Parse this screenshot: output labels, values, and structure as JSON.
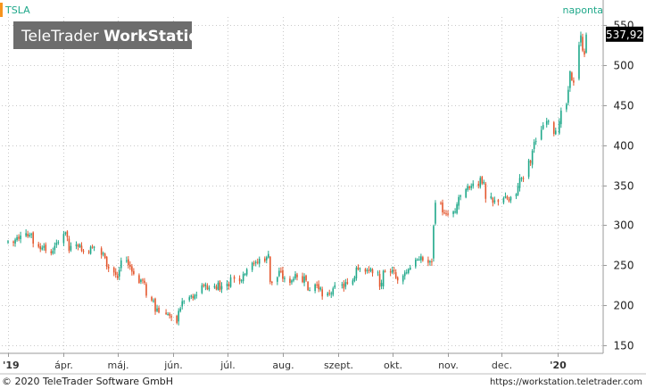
{
  "header": {
    "symbol": "TSLA",
    "interval": "naponta",
    "watermark_part1": "TeleTrader ",
    "watermark_part2": "WorkStation"
  },
  "footer": {
    "copyright": "© 2020 TeleTrader Software GmbH",
    "url": "https://workstation.teletrader.com"
  },
  "colors": {
    "up": "#1fa88a",
    "down": "#e4572e",
    "grid": "#c9c9c9",
    "accent": "#f7941d",
    "watermark_bg": "#6d6d6d",
    "last_price_bg": "#000000"
  },
  "chart_data": {
    "type": "candlestick",
    "title": "TSLA",
    "interval": "naponta",
    "last_price_label": "537,92",
    "last_price": 537.92,
    "ylim": [
      140,
      560
    ],
    "yticks": [
      150,
      200,
      250,
      300,
      350,
      400,
      450,
      500,
      550
    ],
    "ytick_labels": [
      "150",
      "200",
      "250",
      "300",
      "350",
      "400",
      "450",
      "500",
      "550"
    ],
    "xtick_labels": [
      "'19",
      "ápr.",
      "máj.",
      "jún.",
      "júl.",
      "aug.",
      "szept.",
      "okt.",
      "nov.",
      "dec.",
      "'20"
    ],
    "xtick_dates": [
      "2019-03-01",
      "2019-04-01",
      "2019-05-01",
      "2019-06-01",
      "2019-07-01",
      "2019-08-01",
      "2019-09-01",
      "2019-10-01",
      "2019-11-01",
      "2019-12-01",
      "2020-01-01"
    ],
    "x_range": [
      "2019-03-01",
      "2020-01-17"
    ],
    "grid": true,
    "note": "daily closing prices approximated from the chart",
    "closes": [
      [
        "2019-03-01",
        280
      ],
      [
        "2019-03-04",
        278
      ],
      [
        "2019-03-05",
        282
      ],
      [
        "2019-03-06",
        285
      ],
      [
        "2019-03-07",
        283
      ],
      [
        "2019-03-08",
        287
      ],
      [
        "2019-03-11",
        290
      ],
      [
        "2019-03-12",
        286
      ],
      [
        "2019-03-13",
        288
      ],
      [
        "2019-03-14",
        289
      ],
      [
        "2019-03-15",
        277
      ],
      [
        "2019-03-18",
        273
      ],
      [
        "2019-03-19",
        270
      ],
      [
        "2019-03-20",
        272
      ],
      [
        "2019-03-21",
        274
      ],
      [
        "2019-03-22",
        268
      ],
      [
        "2019-03-25",
        265
      ],
      [
        "2019-03-26",
        268
      ],
      [
        "2019-03-27",
        274
      ],
      [
        "2019-03-28",
        278
      ],
      [
        "2019-03-29",
        279
      ],
      [
        "2019-04-01",
        289
      ],
      [
        "2019-04-02",
        291
      ],
      [
        "2019-04-03",
        285
      ],
      [
        "2019-04-04",
        268
      ],
      [
        "2019-04-05",
        274
      ],
      [
        "2019-04-08",
        276
      ],
      [
        "2019-04-09",
        273
      ],
      [
        "2019-04-10",
        276
      ],
      [
        "2019-04-11",
        268
      ],
      [
        "2019-04-12",
        267
      ],
      [
        "2019-04-15",
        266
      ],
      [
        "2019-04-16",
        273
      ],
      [
        "2019-04-17",
        272
      ],
      [
        "2019-04-18",
        273
      ],
      [
        "2019-04-22",
        263
      ],
      [
        "2019-04-23",
        265
      ],
      [
        "2019-04-24",
        259
      ],
      [
        "2019-04-25",
        248
      ],
      [
        "2019-04-26",
        246
      ],
      [
        "2019-04-29",
        241
      ],
      [
        "2019-04-30",
        238
      ],
      [
        "2019-05-01",
        234
      ],
      [
        "2019-05-02",
        244
      ],
      [
        "2019-05-03",
        256
      ],
      [
        "2019-05-06",
        256
      ],
      [
        "2019-05-07",
        250
      ],
      [
        "2019-05-08",
        248
      ],
      [
        "2019-05-09",
        242
      ],
      [
        "2019-05-10",
        239
      ],
      [
        "2019-05-13",
        228
      ],
      [
        "2019-05-14",
        232
      ],
      [
        "2019-05-15",
        231
      ],
      [
        "2019-05-16",
        228
      ],
      [
        "2019-05-17",
        212
      ],
      [
        "2019-05-20",
        206
      ],
      [
        "2019-05-21",
        206
      ],
      [
        "2019-05-22",
        192
      ],
      [
        "2019-05-23",
        196
      ],
      [
        "2019-05-24",
        191
      ],
      [
        "2019-05-28",
        189
      ],
      [
        "2019-05-29",
        189
      ],
      [
        "2019-05-30",
        187
      ],
      [
        "2019-05-31",
        185
      ],
      [
        "2019-06-03",
        178
      ],
      [
        "2019-06-04",
        193
      ],
      [
        "2019-06-05",
        196
      ],
      [
        "2019-06-06",
        205
      ],
      [
        "2019-06-07",
        205
      ],
      [
        "2019-06-10",
        210
      ],
      [
        "2019-06-11",
        212
      ],
      [
        "2019-06-12",
        209
      ],
      [
        "2019-06-13",
        213
      ],
      [
        "2019-06-14",
        213
      ],
      [
        "2019-06-17",
        225
      ],
      [
        "2019-06-18",
        224
      ],
      [
        "2019-06-19",
        226
      ],
      [
        "2019-06-20",
        220
      ],
      [
        "2019-06-21",
        222
      ],
      [
        "2019-06-24",
        224
      ],
      [
        "2019-06-25",
        220
      ],
      [
        "2019-06-26",
        228
      ],
      [
        "2019-06-27",
        219
      ],
      [
        "2019-06-28",
        224
      ],
      [
        "2019-07-01",
        227
      ],
      [
        "2019-07-02",
        224
      ],
      [
        "2019-07-03",
        235
      ],
      [
        "2019-07-05",
        233
      ],
      [
        "2019-07-08",
        230
      ],
      [
        "2019-07-09",
        231
      ],
      [
        "2019-07-10",
        239
      ],
      [
        "2019-07-11",
        239
      ],
      [
        "2019-07-12",
        245
      ],
      [
        "2019-07-15",
        253
      ],
      [
        "2019-07-16",
        252
      ],
      [
        "2019-07-17",
        254
      ],
      [
        "2019-07-18",
        253
      ],
      [
        "2019-07-19",
        258
      ],
      [
        "2019-07-22",
        255
      ],
      [
        "2019-07-23",
        260
      ],
      [
        "2019-07-24",
        264
      ],
      [
        "2019-07-25",
        229
      ],
      [
        "2019-07-26",
        228
      ],
      [
        "2019-07-29",
        235
      ],
      [
        "2019-07-30",
        243
      ],
      [
        "2019-07-31",
        242
      ],
      [
        "2019-08-01",
        233
      ],
      [
        "2019-08-02",
        234
      ],
      [
        "2019-08-05",
        228
      ],
      [
        "2019-08-06",
        231
      ],
      [
        "2019-08-07",
        233
      ],
      [
        "2019-08-08",
        239
      ],
      [
        "2019-08-09",
        235
      ],
      [
        "2019-08-12",
        229
      ],
      [
        "2019-08-13",
        236
      ],
      [
        "2019-08-14",
        231
      ],
      [
        "2019-08-15",
        219
      ],
      [
        "2019-08-16",
        219
      ],
      [
        "2019-08-19",
        226
      ],
      [
        "2019-08-20",
        225
      ],
      [
        "2019-08-21",
        220
      ],
      [
        "2019-08-22",
        222
      ],
      [
        "2019-08-23",
        211
      ],
      [
        "2019-08-26",
        215
      ],
      [
        "2019-08-27",
        214
      ],
      [
        "2019-08-28",
        215
      ],
      [
        "2019-08-29",
        221
      ],
      [
        "2019-08-30",
        225
      ],
      [
        "2019-09-03",
        226
      ],
      [
        "2019-09-04",
        221
      ],
      [
        "2019-09-05",
        229
      ],
      [
        "2019-09-06",
        227
      ],
      [
        "2019-09-09",
        231
      ],
      [
        "2019-09-10",
        235
      ],
      [
        "2019-09-11",
        247
      ],
      [
        "2019-09-12",
        245
      ],
      [
        "2019-09-13",
        246
      ],
      [
        "2019-09-16",
        242
      ],
      [
        "2019-09-17",
        244
      ],
      [
        "2019-09-18",
        243
      ],
      [
        "2019-09-19",
        246
      ],
      [
        "2019-09-20",
        240
      ],
      [
        "2019-09-23",
        241
      ],
      [
        "2019-09-24",
        223
      ],
      [
        "2019-09-25",
        228
      ],
      [
        "2019-09-26",
        243
      ],
      [
        "2019-09-27",
        242
      ],
      [
        "2019-09-30",
        241
      ],
      [
        "2019-10-01",
        244
      ],
      [
        "2019-10-02",
        243
      ],
      [
        "2019-10-03",
        234
      ],
      [
        "2019-10-04",
        231
      ],
      [
        "2019-10-07",
        237
      ],
      [
        "2019-10-08",
        241
      ],
      [
        "2019-10-09",
        241
      ],
      [
        "2019-10-10",
        245
      ],
      [
        "2019-10-11",
        247
      ],
      [
        "2019-10-14",
        257
      ],
      [
        "2019-10-15",
        257
      ],
      [
        "2019-10-16",
        257
      ],
      [
        "2019-10-17",
        261
      ],
      [
        "2019-10-18",
        256
      ],
      [
        "2019-10-21",
        253
      ],
      [
        "2019-10-22",
        255
      ],
      [
        "2019-10-23",
        254
      ],
      [
        "2019-10-24",
        299
      ],
      [
        "2019-10-25",
        328
      ],
      [
        "2019-10-28",
        327
      ],
      [
        "2019-10-29",
        316
      ],
      [
        "2019-10-30",
        315
      ],
      [
        "2019-10-31",
        314
      ],
      [
        "2019-11-01",
        313
      ],
      [
        "2019-11-04",
        317
      ],
      [
        "2019-11-05",
        317
      ],
      [
        "2019-11-06",
        326
      ],
      [
        "2019-11-07",
        335
      ],
      [
        "2019-11-08",
        337
      ],
      [
        "2019-11-11",
        345
      ],
      [
        "2019-11-12",
        349
      ],
      [
        "2019-11-13",
        346
      ],
      [
        "2019-11-14",
        349
      ],
      [
        "2019-11-15",
        352
      ],
      [
        "2019-11-18",
        349
      ],
      [
        "2019-11-19",
        359
      ],
      [
        "2019-11-20",
        352
      ],
      [
        "2019-11-21",
        354
      ],
      [
        "2019-11-22",
        333
      ],
      [
        "2019-11-25",
        336
      ],
      [
        "2019-11-26",
        328
      ],
      [
        "2019-11-27",
        331
      ],
      [
        "2019-11-29",
        329
      ],
      [
        "2019-12-02",
        334
      ],
      [
        "2019-12-03",
        336
      ],
      [
        "2019-12-04",
        333
      ],
      [
        "2019-12-05",
        330
      ],
      [
        "2019-12-06",
        335
      ],
      [
        "2019-12-09",
        339
      ],
      [
        "2019-12-10",
        349
      ],
      [
        "2019-12-11",
        359
      ],
      [
        "2019-12-12",
        359
      ],
      [
        "2019-12-13",
        358
      ],
      [
        "2019-12-16",
        381
      ],
      [
        "2019-12-17",
        378
      ],
      [
        "2019-12-18",
        393
      ],
      [
        "2019-12-19",
        404
      ],
      [
        "2019-12-20",
        405
      ],
      [
        "2019-12-23",
        419
      ],
      [
        "2019-12-24",
        425
      ],
      [
        "2019-12-26",
        430
      ],
      [
        "2019-12-27",
        430
      ],
      [
        "2019-12-30",
        414
      ],
      [
        "2019-12-31",
        418
      ],
      [
        "2020-01-02",
        430
      ],
      [
        "2020-01-03",
        443
      ],
      [
        "2020-01-06",
        451
      ],
      [
        "2020-01-07",
        469
      ],
      [
        "2020-01-08",
        492
      ],
      [
        "2020-01-09",
        481
      ],
      [
        "2020-01-10",
        478
      ],
      [
        "2020-01-13",
        525
      ],
      [
        "2020-01-14",
        537
      ],
      [
        "2020-01-15",
        518
      ],
      [
        "2020-01-16",
        513
      ],
      [
        "2020-01-17",
        538
      ]
    ]
  }
}
